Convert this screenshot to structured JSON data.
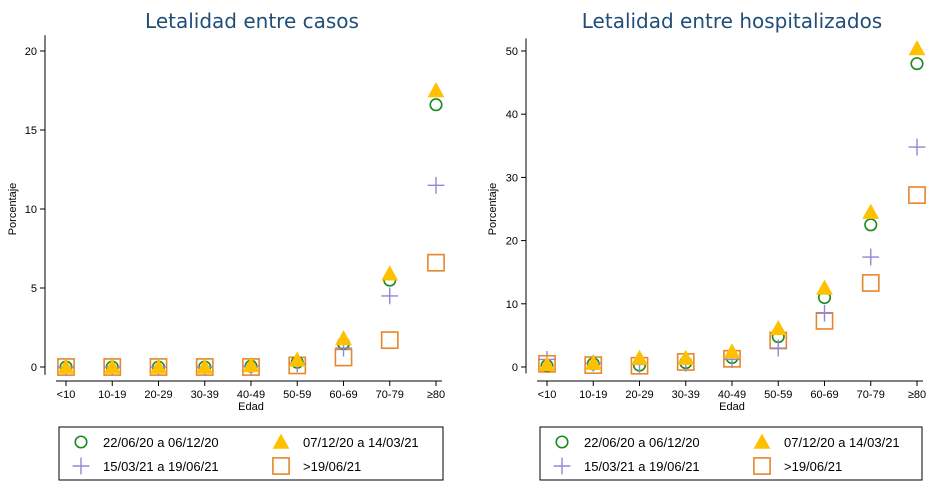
{
  "chart_data": [
    {
      "type": "scatter",
      "title": "Letalidad entre casos",
      "xlabel": "Edad",
      "ylabel": "Porcentaje",
      "categories": [
        "<10",
        "10-19",
        "20-29",
        "30-39",
        "40-49",
        "50-59",
        "60-69",
        "70-79",
        "≥80"
      ],
      "ylim": [
        -0.5,
        21
      ],
      "yticks": [
        0,
        5,
        10,
        15,
        20
      ],
      "grid": false,
      "legend": "bottom",
      "series": [
        {
          "name": "22/06/20 a 06/12/20",
          "marker": "circle",
          "color": "#1a8a1a",
          "values": [
            0,
            0,
            0,
            0,
            0.05,
            0.3,
            1.5,
            5.5,
            16.6
          ]
        },
        {
          "name": "07/12/20 a 14/03/21",
          "marker": "triangle",
          "color": "#ffc000",
          "values": [
            0,
            0,
            0,
            0,
            0.1,
            0.45,
            1.8,
            5.9,
            17.5
          ]
        },
        {
          "name": "15/03/21 a 19/06/21",
          "marker": "plus",
          "color": "#8e88d6",
          "values": [
            0,
            0,
            0,
            0,
            0.05,
            0.2,
            1.2,
            4.5,
            11.5
          ]
        },
        {
          "name": ">19/06/21",
          "marker": "square",
          "color": "#e8862a",
          "values": [
            0,
            0,
            0,
            0,
            0,
            0.1,
            0.6,
            1.7,
            6.6
          ]
        }
      ]
    },
    {
      "type": "scatter",
      "title": "Letalidad entre hospitalizados",
      "xlabel": "Edad",
      "ylabel": "Porcentaje",
      "categories": [
        "<10",
        "10-19",
        "20-29",
        "30-39",
        "40-49",
        "50-59",
        "60-69",
        "70-79",
        "≥80"
      ],
      "ylim": [
        -1,
        52
      ],
      "yticks": [
        0,
        10,
        20,
        30,
        40,
        50
      ],
      "grid": false,
      "legend": "bottom",
      "series": [
        {
          "name": "22/06/20 a 06/12/20",
          "marker": "circle",
          "color": "#1a8a1a",
          "values": [
            0.2,
            0.5,
            0.3,
            0.7,
            1.5,
            4.8,
            11.0,
            22.5,
            48.0
          ]
        },
        {
          "name": "07/12/20 a 14/03/21",
          "marker": "triangle",
          "color": "#ffc000",
          "values": [
            0.4,
            0.6,
            1.4,
            1.4,
            2.4,
            6.1,
            12.5,
            24.5,
            50.4
          ]
        },
        {
          "name": "15/03/21 a 19/06/21",
          "marker": "plus",
          "color": "#8e88d6",
          "values": [
            1.2,
            0.6,
            0.4,
            0.6,
            1.2,
            3.0,
            8.5,
            17.4,
            34.8
          ]
        },
        {
          "name": ">19/06/21",
          "marker": "square",
          "color": "#e8862a",
          "values": [
            0.5,
            0.3,
            0.2,
            0.8,
            1.3,
            4.2,
            7.3,
            13.3,
            27.2
          ]
        }
      ]
    }
  ]
}
